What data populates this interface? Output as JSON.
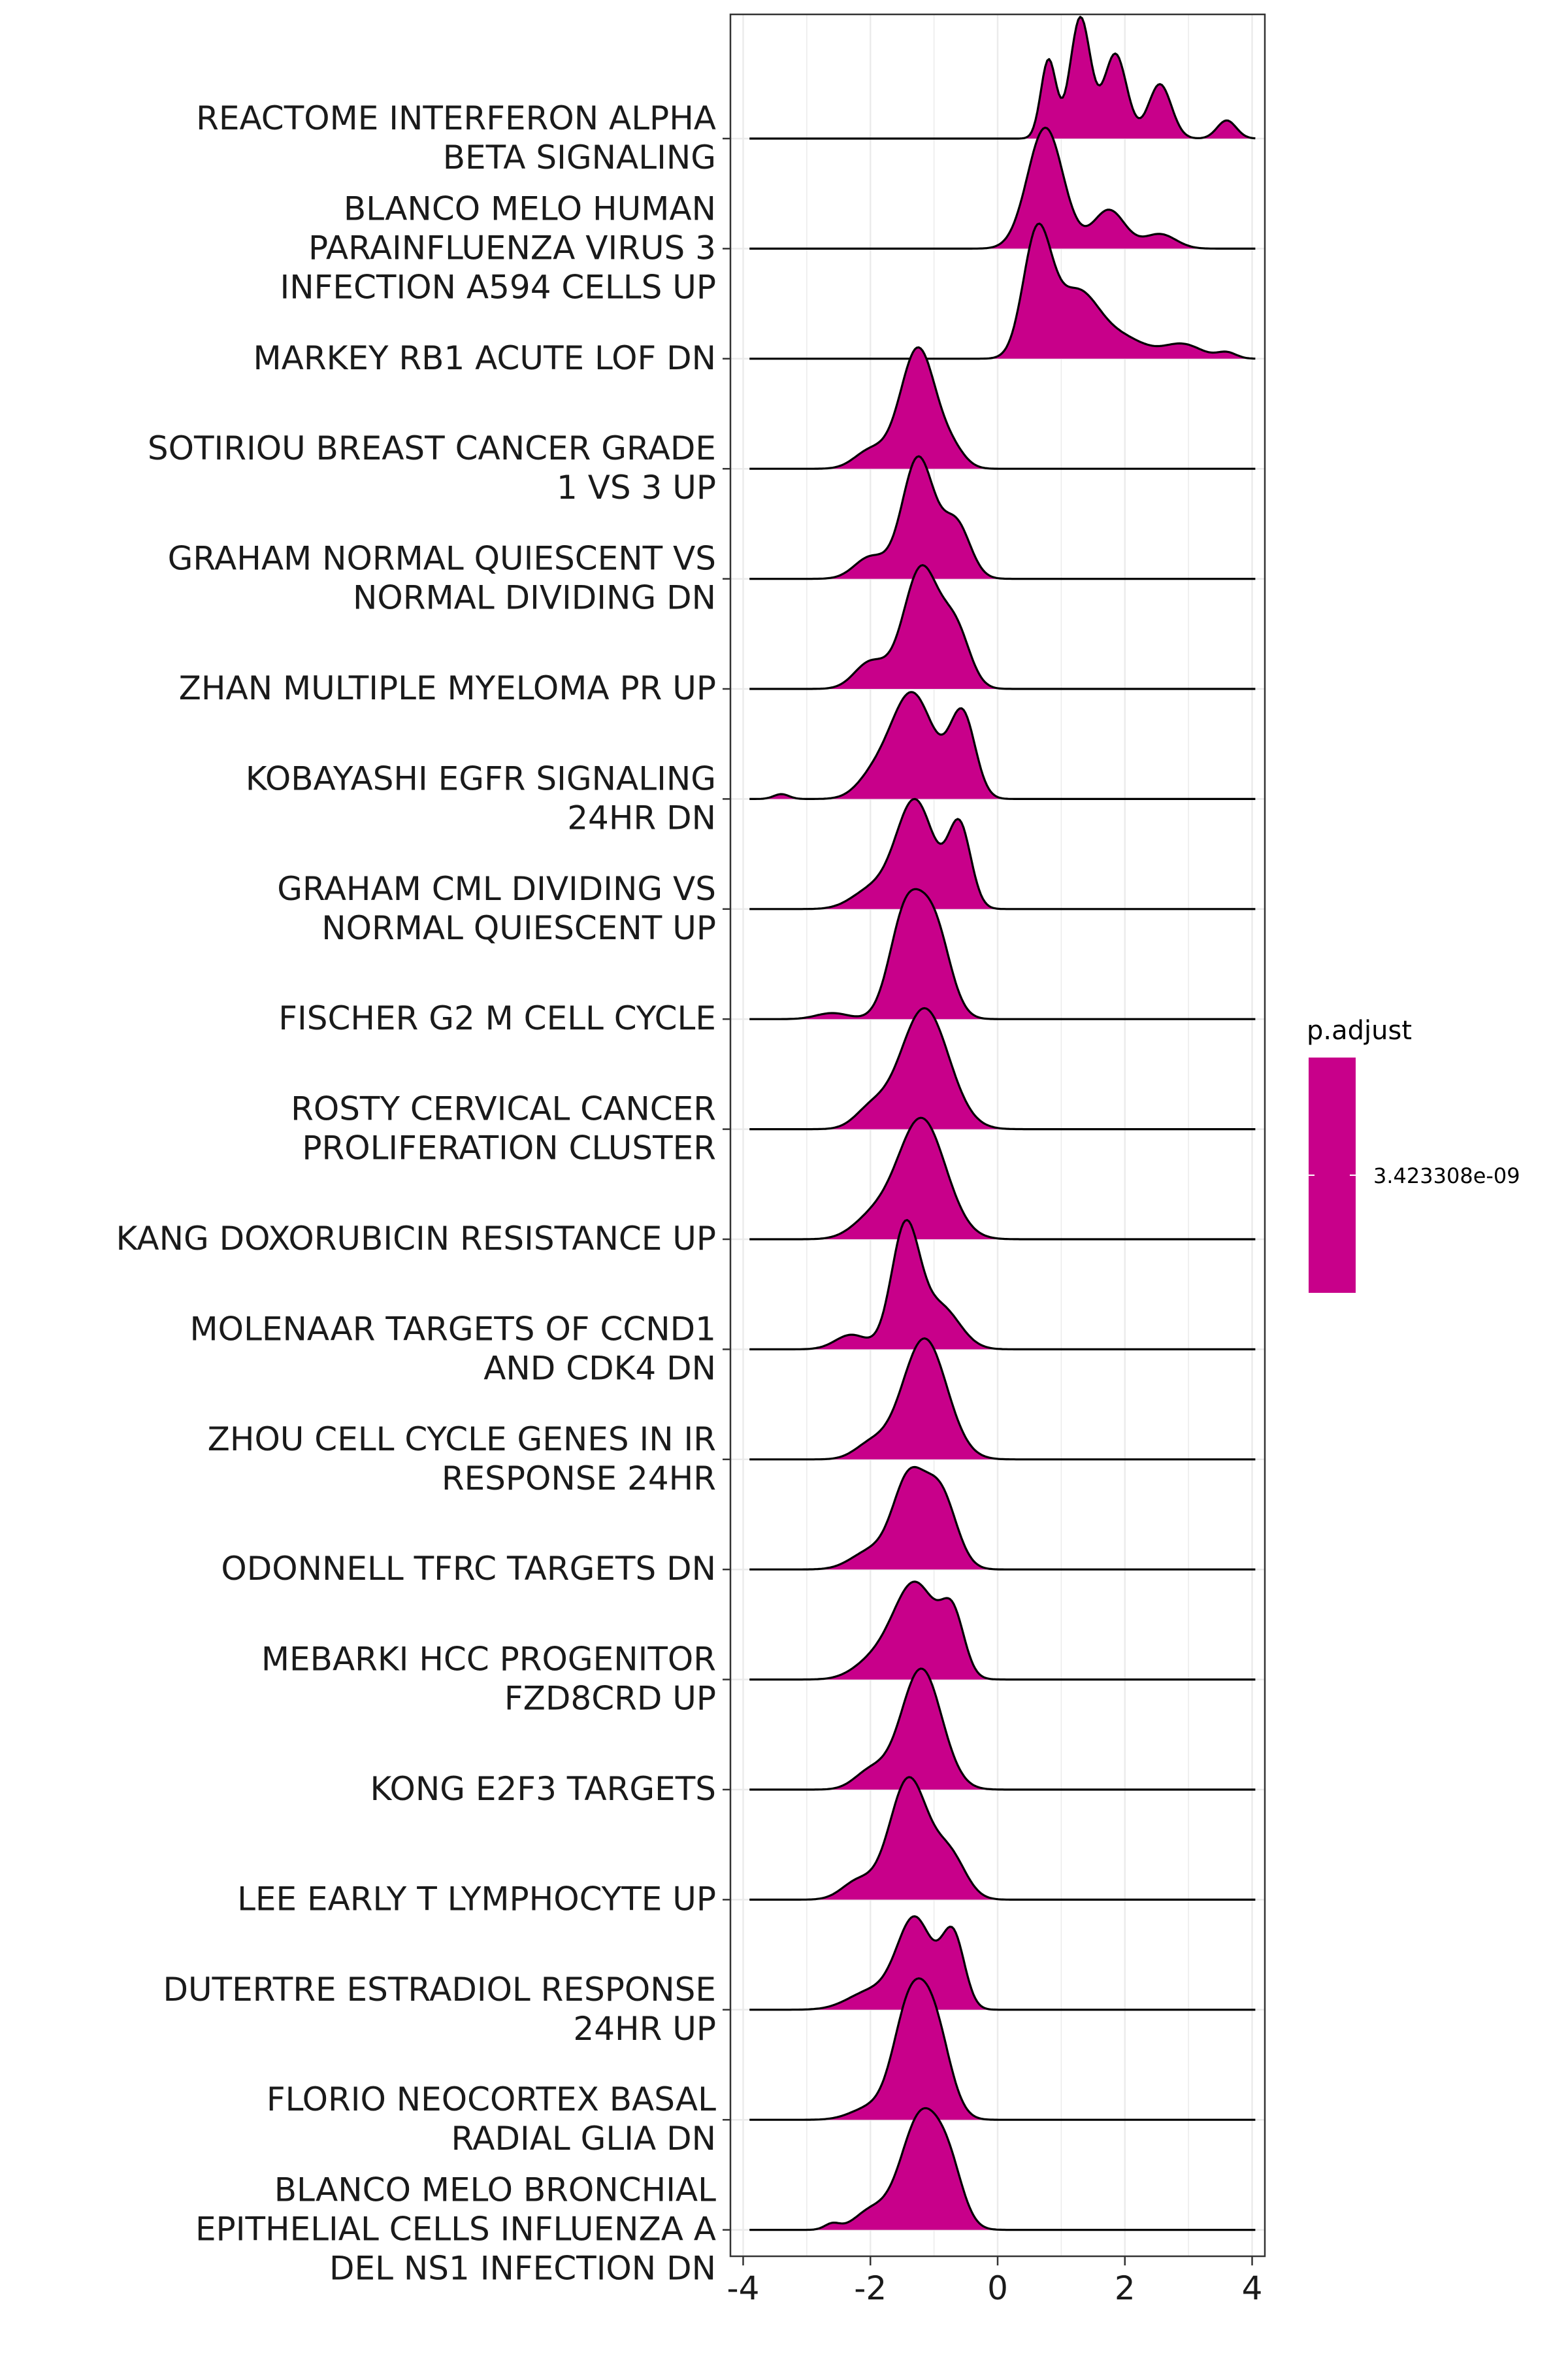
{
  "chart_data": {
    "type": "ridgeline",
    "title": "",
    "xlabel": "",
    "ylabel": "",
    "xlim": [
      -4.2,
      4.2
    ],
    "x_ticks": [
      -4,
      -2,
      0,
      2,
      4
    ],
    "x_tick_labels": [
      "-4",
      "-2",
      "0",
      "2",
      "4"
    ],
    "grid": true,
    "fill_color": "#C8008A",
    "legend": {
      "title": "p.adjust",
      "label": "3.423308e-09",
      "color": "#C8008A",
      "placement": "right"
    },
    "categories": [
      {
        "label": [
          "REACTOME INTERFERON ALPHA",
          "BETA SIGNALING"
        ],
        "range": [
          -3.9,
          4.05
        ],
        "peaks": [
          [
            0.8,
            0.12,
            0.65
          ],
          [
            1.3,
            0.16,
            1.0
          ],
          [
            1.85,
            0.18,
            0.7
          ],
          [
            2.55,
            0.18,
            0.45
          ],
          [
            3.6,
            0.15,
            0.15
          ]
        ]
      },
      {
        "label": [
          "BLANCO MELO HUMAN",
          "PARAINFLUENZA VIRUS 3",
          "INFECTION A594 CELLS UP"
        ],
        "range": [
          -3.9,
          4.05
        ],
        "peaks": [
          [
            0.75,
            0.28,
            1.0
          ],
          [
            1.75,
            0.25,
            0.32
          ],
          [
            2.55,
            0.25,
            0.12
          ]
        ]
      },
      {
        "label": [
          "MARKEY RB1 ACUTE LOF DN"
        ],
        "range": [
          -3.9,
          4.05
        ],
        "peaks": [
          [
            0.62,
            0.22,
            1.0
          ],
          [
            1.25,
            0.35,
            0.55
          ],
          [
            2.0,
            0.35,
            0.15
          ],
          [
            2.9,
            0.3,
            0.12
          ],
          [
            3.6,
            0.15,
            0.05
          ]
        ]
      },
      {
        "label": [
          "SOTIRIOU BREAST CANCER GRADE",
          "1 VS 3 UP"
        ],
        "range": [
          -3.9,
          4.05
        ],
        "peaks": [
          [
            -1.25,
            0.28,
            1.0
          ],
          [
            -2.0,
            0.25,
            0.15
          ],
          [
            -0.7,
            0.2,
            0.12
          ]
        ]
      },
      {
        "label": [
          "GRAHAM NORMAL QUIESCENT VS",
          "NORMAL DIVIDING DN"
        ],
        "range": [
          -3.9,
          4.05
        ],
        "peaks": [
          [
            -1.25,
            0.25,
            1.0
          ],
          [
            -2.0,
            0.25,
            0.18
          ],
          [
            -0.65,
            0.22,
            0.45
          ]
        ]
      },
      {
        "label": [
          "ZHAN MULTIPLE MYELOMA PR UP"
        ],
        "range": [
          -3.9,
          4.05
        ],
        "peaks": [
          [
            -1.2,
            0.28,
            1.0
          ],
          [
            -2.0,
            0.25,
            0.22
          ],
          [
            -0.65,
            0.22,
            0.45
          ]
        ]
      },
      {
        "label": [
          "KOBAYASHI EGFR SIGNALING",
          "24HR DN"
        ],
        "range": [
          -3.9,
          4.05
        ],
        "peaks": [
          [
            -1.35,
            0.35,
            0.88
          ],
          [
            -0.55,
            0.2,
            0.68
          ],
          [
            -2.0,
            0.25,
            0.12
          ],
          [
            -3.4,
            0.12,
            0.04
          ]
        ]
      },
      {
        "label": [
          "GRAHAM CML DIVIDING VS",
          "NORMAL QUIESCENT UP"
        ],
        "range": [
          -3.9,
          4.05
        ],
        "peaks": [
          [
            -1.3,
            0.3,
            0.9
          ],
          [
            -0.6,
            0.18,
            0.68
          ],
          [
            -2.0,
            0.3,
            0.15
          ]
        ]
      },
      {
        "label": [
          "FISCHER G2 M CELL CYCLE"
        ],
        "range": [
          -3.9,
          4.05
        ],
        "peaks": [
          [
            -1.45,
            0.25,
            0.85
          ],
          [
            -1.0,
            0.25,
            0.75
          ],
          [
            -2.6,
            0.25,
            0.05
          ]
        ]
      },
      {
        "label": [
          "ROSTY CERVICAL CANCER",
          "PROLIFERATION CLUSTER"
        ],
        "range": [
          -3.9,
          4.05
        ],
        "peaks": [
          [
            -1.15,
            0.38,
            1.0
          ],
          [
            -2.0,
            0.25,
            0.15
          ]
        ]
      },
      {
        "label": [
          "KANG DOXORUBICIN RESISTANCE UP"
        ],
        "range": [
          -3.9,
          4.05
        ],
        "peaks": [
          [
            -1.2,
            0.38,
            1.0
          ],
          [
            -2.0,
            0.3,
            0.15
          ]
        ]
      },
      {
        "label": [
          "MOLENAAR TARGETS OF CCND1",
          "AND CDK4 DN"
        ],
        "range": [
          -3.9,
          4.05
        ],
        "peaks": [
          [
            -1.45,
            0.22,
            1.0
          ],
          [
            -0.9,
            0.3,
            0.35
          ],
          [
            -2.3,
            0.25,
            0.12
          ]
        ]
      },
      {
        "label": [
          "ZHOU CELL CYCLE GENES IN IR",
          "RESPONSE 24HR"
        ],
        "range": [
          -3.9,
          4.05
        ],
        "peaks": [
          [
            -1.15,
            0.35,
            1.0
          ],
          [
            -2.0,
            0.25,
            0.12
          ]
        ]
      },
      {
        "label": [
          "ODONNELL TFRC TARGETS DN"
        ],
        "range": [
          -3.9,
          4.05
        ],
        "peaks": [
          [
            -1.4,
            0.25,
            0.72
          ],
          [
            -0.9,
            0.25,
            0.62
          ],
          [
            -2.0,
            0.3,
            0.15
          ]
        ]
      },
      {
        "label": [
          "MEBARKI HCC PROGENITOR",
          "FZD8CRD UP"
        ],
        "range": [
          -3.9,
          4.05
        ],
        "peaks": [
          [
            -1.3,
            0.35,
            0.8
          ],
          [
            -0.7,
            0.18,
            0.45
          ],
          [
            -2.0,
            0.3,
            0.12
          ]
        ]
      },
      {
        "label": [
          "KONG E2F3 TARGETS"
        ],
        "range": [
          -3.9,
          4.05
        ],
        "peaks": [
          [
            -1.2,
            0.32,
            1.0
          ],
          [
            -2.0,
            0.25,
            0.15
          ]
        ]
      },
      {
        "label": [
          "LEE EARLY T LYMPHOCYTE UP"
        ],
        "range": [
          -3.9,
          4.05
        ],
        "peaks": [
          [
            -1.4,
            0.3,
            1.0
          ],
          [
            -0.75,
            0.25,
            0.35
          ],
          [
            -2.2,
            0.25,
            0.15
          ]
        ]
      },
      {
        "label": [
          "DUTERTRE ESTRADIOL RESPONSE",
          "24HR UP"
        ],
        "range": [
          -3.9,
          4.05
        ],
        "peaks": [
          [
            -1.3,
            0.28,
            0.75
          ],
          [
            -0.7,
            0.18,
            0.6
          ],
          [
            -2.0,
            0.35,
            0.15
          ]
        ]
      },
      {
        "label": [
          "FLORIO NEOCORTEX BASAL",
          "RADIAL GLIA DN"
        ],
        "range": [
          -3.9,
          4.05
        ],
        "peaks": [
          [
            -1.4,
            0.25,
            0.85
          ],
          [
            -1.0,
            0.25,
            0.75
          ],
          [
            -2.0,
            0.3,
            0.1
          ]
        ]
      },
      {
        "label": [
          "BLANCO MELO BRONCHIAL",
          "EPITHELIAL CELLS INFLUENZA A",
          "DEL NS1 INFECTION DN"
        ],
        "range": [
          -3.9,
          4.05
        ],
        "peaks": [
          [
            -1.2,
            0.32,
            0.95
          ],
          [
            -0.75,
            0.22,
            0.35
          ],
          [
            -2.0,
            0.25,
            0.15
          ],
          [
            -2.6,
            0.12,
            0.05
          ]
        ]
      }
    ]
  }
}
